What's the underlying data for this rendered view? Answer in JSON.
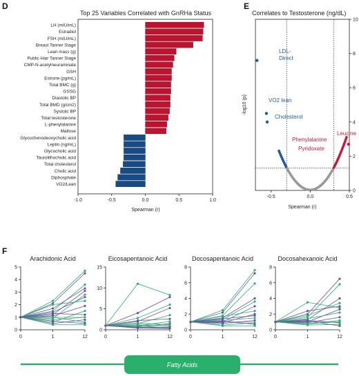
{
  "panels": {
    "d": {
      "letter": "D",
      "title": "Top 25 Variables Correlated with GnRHa Status",
      "xlabel": "Spearman (r)",
      "colors": {
        "positive": "#c0122f",
        "negative": "#154b86"
      },
      "chart_data": {
        "type": "bar",
        "orientation": "horizontal",
        "categories": [
          "LH (mIU/mL)",
          "Estradiol",
          "FSH (mIU/mL)",
          "Breast Tanner Stage",
          "Lean mass (g)",
          "Public Hair Tanner Stage",
          "CMP-N-acetylneuraminate",
          "GSH",
          "Estrone (pg/mL)",
          "Total BMC (g)",
          "GSSG",
          "Diastolic BP",
          "Total BMD (g/cm2)",
          "Systolic BP",
          "Total testosterone",
          "L-phenylalanine",
          "Maltose",
          "Glycochenodeoxycholic acid",
          "Leptin (ng/mL)",
          "Glycocholic acid",
          "Taurolithocholic acid",
          "Total cholesterol",
          "Cholic acid",
          "Diphosphate",
          "VO2/Lean"
        ],
        "values": [
          0.87,
          0.86,
          0.85,
          0.71,
          0.46,
          0.43,
          0.41,
          0.39,
          0.39,
          0.38,
          0.38,
          0.37,
          0.37,
          0.36,
          0.34,
          0.32,
          0.31,
          -0.32,
          -0.32,
          -0.32,
          -0.32,
          -0.33,
          -0.37,
          -0.41,
          -0.44
        ],
        "xlim": [
          -1.0,
          1.0
        ],
        "xticks": [
          "-1.0",
          "-0.5",
          "0.0",
          "0.5",
          "1.0"
        ],
        "xlabel": "Spearman (r)"
      }
    },
    "e": {
      "letter": "E",
      "title": "Correlates to Testosterone (ng/dL)",
      "xlabel": "Spearman (r)",
      "ylabel": "-log10 (p)",
      "colors": {
        "neg": "#1f5b9a",
        "pos": "#c01d3a",
        "ns": "#9a9a9a"
      },
      "labels": {
        "ldl1": "LDL-",
        "ldl2": "Direct",
        "vo2": "VO2 lean",
        "chol": "Cholesterol",
        "phe": "Phenylalanine",
        "pyr": "Pyridoxate",
        "leu": "Leucine"
      },
      "chart_data": {
        "type": "scatter",
        "xlim": [
          -0.7,
          0.5
        ],
        "ylim": [
          0,
          10
        ],
        "xticks": [
          "-0.5",
          "0.0",
          "0.5"
        ],
        "yticks": [
          "0",
          "2",
          "4",
          "6",
          "8",
          "10"
        ],
        "vlines": [
          -0.3,
          0.3
        ],
        "hline": 1.3,
        "highlighted": [
          {
            "name": "LDL-Direct",
            "x": -0.68,
            "y": 7.6
          },
          {
            "name": "VO2 lean",
            "x": -0.56,
            "y": 4.5
          },
          {
            "name": "Cholesterol",
            "x": -0.55,
            "y": 4.0
          },
          {
            "name": "Leucine",
            "x": 0.49,
            "y": 2.7
          }
        ]
      }
    },
    "f": {
      "letter": "F",
      "colors": {
        "green": "#2bb06b",
        "purple": "#6a4fa8"
      },
      "banner_label": "Fatty Acids",
      "chart_data": [
        {
          "title": "Arachidonic Acid",
          "type": "line",
          "x": [
            "0",
            "1",
            "12"
          ],
          "ylim": [
            0,
            5
          ],
          "yticks": [
            "0",
            "1",
            "2",
            "3",
            "4",
            "5"
          ],
          "series": [
            [
              1,
              2.3,
              4.7
            ],
            [
              1,
              2.1,
              4.5
            ],
            [
              1,
              1.5,
              3.6
            ],
            [
              1,
              1.2,
              3.1
            ],
            [
              1,
              0.9,
              2.8
            ],
            [
              1,
              1.4,
              2.6
            ],
            [
              1,
              2.0,
              2.3
            ],
            [
              1,
              1.1,
              1.9
            ],
            [
              1,
              0.6,
              1.5
            ],
            [
              1,
              1.3,
              1.2
            ],
            [
              1,
              0.8,
              1.0
            ],
            [
              1,
              0.5,
              0.8
            ],
            [
              1,
              1.0,
              0.6
            ],
            [
              1,
              0.7,
              0.5
            ],
            [
              1,
              0.4,
              0.4
            ],
            [
              1,
              1.7,
              3.3
            ]
          ]
        },
        {
          "title": "Eicosapentanoic Acid",
          "type": "line",
          "x": [
            "0",
            "1",
            "12"
          ],
          "ylim": [
            0,
            15
          ],
          "yticks": [
            "0",
            "5",
            "10",
            "15"
          ],
          "series": [
            [
              1,
              11.0,
              8.3
            ],
            [
              1,
              4.0,
              7.8
            ],
            [
              1,
              2.8,
              6.0
            ],
            [
              1,
              2.0,
              5.2
            ],
            [
              1,
              1.5,
              3.5
            ],
            [
              1,
              2.2,
              2.6
            ],
            [
              1,
              1.0,
              2.0
            ],
            [
              1,
              0.7,
              1.5
            ],
            [
              1,
              1.2,
              1.0
            ],
            [
              1,
              0.5,
              0.7
            ],
            [
              1,
              0.9,
              0.5
            ],
            [
              1,
              0.4,
              0.3
            ],
            [
              1,
              1.6,
              1.2
            ],
            [
              1,
              0.6,
              0.4
            ]
          ]
        },
        {
          "title": "Docosapentanoic Acid",
          "type": "line",
          "x": [
            "0",
            "1",
            "12"
          ],
          "ylim": [
            0,
            8
          ],
          "yticks": [
            "0",
            "2",
            "4",
            "6",
            "8"
          ],
          "series": [
            [
              1,
              2.5,
              7.6
            ],
            [
              1,
              2.2,
              7.2
            ],
            [
              1,
              1.8,
              5.9
            ],
            [
              1,
              1.5,
              4.0
            ],
            [
              1,
              1.3,
              3.6
            ],
            [
              1,
              1.0,
              3.0
            ],
            [
              1,
              1.7,
              2.4
            ],
            [
              1,
              0.9,
              2.0
            ],
            [
              1,
              1.2,
              1.5
            ],
            [
              1,
              0.8,
              1.2
            ],
            [
              1,
              0.6,
              0.9
            ],
            [
              1,
              1.1,
              0.7
            ],
            [
              1,
              0.5,
              0.5
            ],
            [
              1,
              1.4,
              1.8
            ]
          ]
        },
        {
          "title": "Docosahexanoic Acid",
          "type": "line",
          "x": [
            "0",
            "1",
            "12"
          ],
          "ylim": [
            0,
            8
          ],
          "yticks": [
            "0",
            "2",
            "4",
            "6",
            "8"
          ],
          "series": [
            [
              1,
              3.5,
              2.8
            ],
            [
              1,
              2.0,
              6.5
            ],
            [
              1,
              1.6,
              5.8
            ],
            [
              1,
              1.3,
              4.0
            ],
            [
              1,
              1.8,
              3.4
            ],
            [
              1,
              1.0,
              2.6
            ],
            [
              1,
              1.4,
              2.2
            ],
            [
              1,
              0.9,
              1.6
            ],
            [
              1,
              0.7,
              1.2
            ],
            [
              1,
              1.2,
              0.9
            ],
            [
              1,
              0.6,
              0.7
            ],
            [
              1,
              1.1,
              0.5
            ],
            [
              1,
              0.8,
              1.0
            ],
            [
              1,
              2.4,
              3.0
            ]
          ]
        }
      ]
    }
  }
}
